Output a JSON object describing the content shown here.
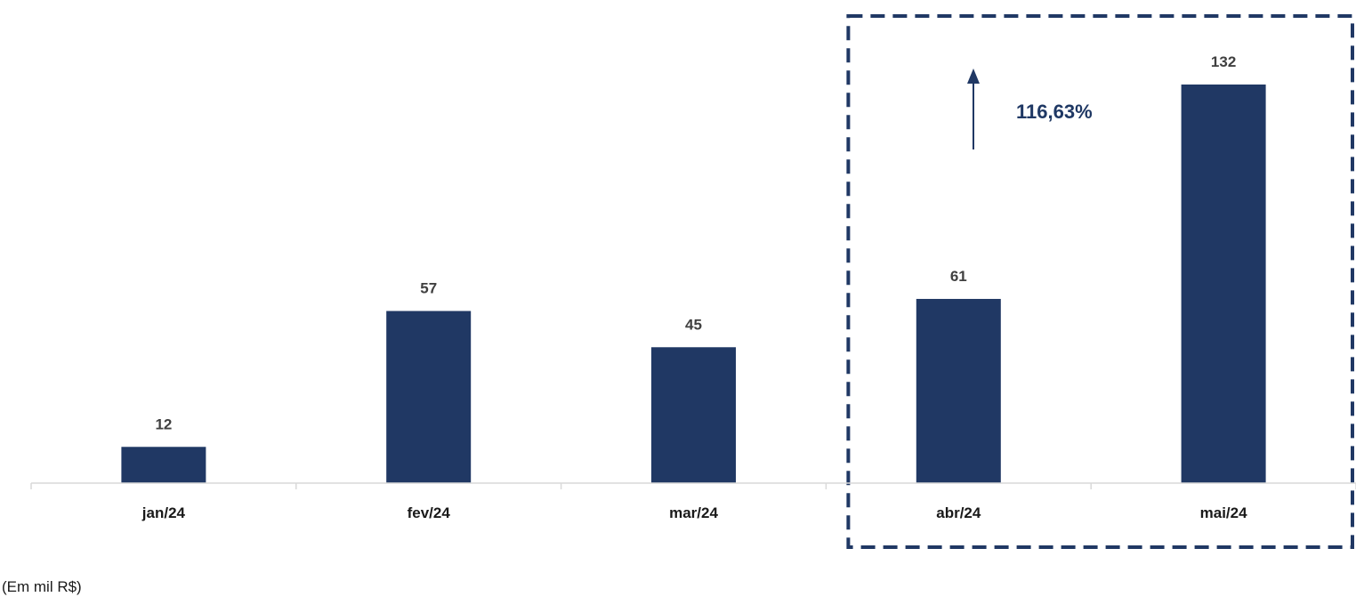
{
  "chart_data": {
    "type": "bar",
    "categories": [
      "jan/24",
      "fev/24",
      "mar/24",
      "abr/24",
      "mai/24"
    ],
    "values": [
      12,
      57,
      45,
      61,
      132
    ],
    "data_labels": [
      "12",
      "57",
      "45",
      "61",
      "132"
    ],
    "title": "",
    "xlabel": "",
    "ylabel": "",
    "ylim": [
      0,
      150
    ],
    "grid": false,
    "legend": "none",
    "annotation": {
      "text": "116,63%",
      "direction": "up",
      "highlighted_categories": [
        "abr/24",
        "mai/24"
      ]
    },
    "unit_note": "(Em mil R$)",
    "colors": {
      "bar": "#203864",
      "highlight_box": "#203864",
      "axis": "#d9d9d9"
    }
  }
}
